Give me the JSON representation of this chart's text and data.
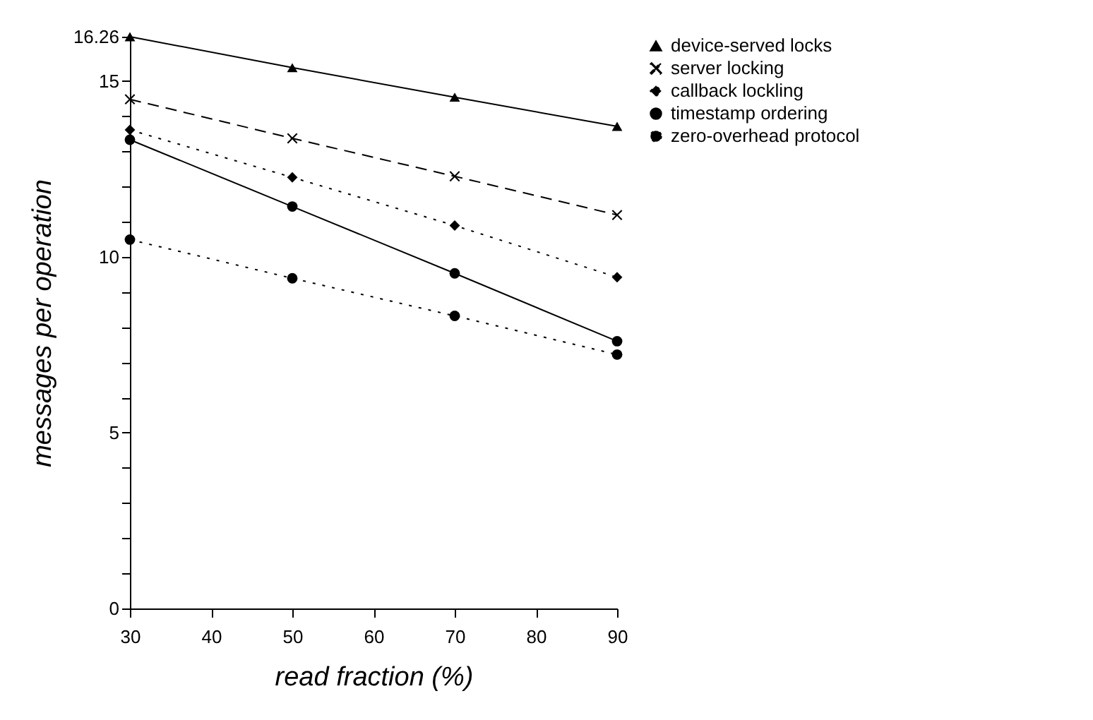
{
  "chart_data": {
    "type": "line",
    "xlabel": "read fraction (%)",
    "ylabel": "messages per operation",
    "x": [
      30,
      50,
      70,
      90
    ],
    "series": [
      {
        "name": "device-served locks",
        "color": "#000000",
        "marker": "triangle",
        "line_style": "solid",
        "values": [
          16.26,
          15.38,
          14.54,
          13.71
        ]
      },
      {
        "name": "server locking",
        "color": "#000000",
        "marker": "cross",
        "line_style": "dashed",
        "values": [
          14.48,
          13.37,
          12.29,
          11.19
        ]
      },
      {
        "name": "callback lockling",
        "color": "#000000",
        "marker": "diamond",
        "line_style": "dotted",
        "values": [
          13.61,
          12.26,
          10.89,
          9.42
        ]
      },
      {
        "name": "timestamp ordering",
        "color": "#000000",
        "marker": "circle",
        "line_style": "solid",
        "values": [
          13.33,
          11.43,
          9.53,
          7.6
        ]
      },
      {
        "name": "zero-overhead protocol",
        "color": "#000000",
        "marker": "circle",
        "line_style": "dotted",
        "values": [
          10.49,
          9.39,
          8.32,
          7.22
        ]
      }
    ],
    "xlim": [
      30,
      90
    ],
    "xticks": [
      30,
      40,
      50,
      60,
      70,
      80,
      90
    ],
    "ylim": [
      0,
      16.26
    ],
    "yticks": [
      0,
      {
        "value": 1,
        "label": null
      },
      {
        "value": 2,
        "label": null
      },
      {
        "value": 3,
        "label": null
      },
      {
        "value": 4,
        "label": null
      },
      5,
      {
        "value": 6,
        "label": null
      },
      {
        "value": 7,
        "label": null
      },
      {
        "value": 8,
        "label": null
      },
      {
        "value": 9,
        "label": null
      },
      10,
      {
        "value": 11,
        "label": null
      },
      {
        "value": 12,
        "label": null
      },
      {
        "value": 13,
        "label": null
      },
      {
        "value": 14,
        "label": null
      },
      15,
      16.26
    ],
    "grid": false,
    "legend": "right"
  }
}
